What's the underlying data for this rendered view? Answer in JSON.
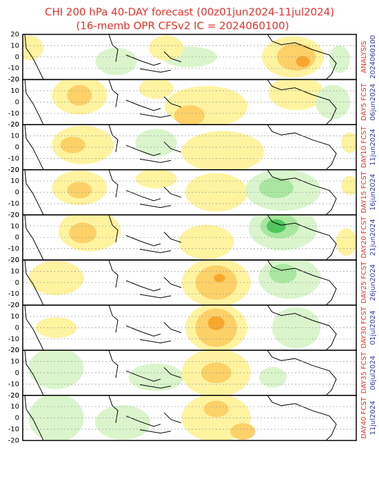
{
  "title": "CHI 200 hPa 40-DAY forecast (00z01jun2024-11jul2024)",
  "subtitle": "(16-memb OPR CFSv2 IC = 2024060100)",
  "yticks": [
    20,
    10,
    0,
    -10,
    -20
  ],
  "ylim": [
    -20,
    20
  ],
  "panels": [
    {
      "label": "ANALYSIS",
      "date": "2024060100"
    },
    {
      "label": "DAY5 FCST",
      "date": "06jun2024"
    },
    {
      "label": "DAY10 FCST",
      "date": "11jun2024"
    },
    {
      "label": "DAY15 FCST",
      "date": "16jun2024"
    },
    {
      "label": "DAY20 FCST",
      "date": "21jun2024"
    },
    {
      "label": "DAY25 FCST",
      "date": "26jun2024"
    },
    {
      "label": "DAY30 FCST",
      "date": "01jul2024"
    },
    {
      "label": "DAY35 FCST",
      "date": "06jul2024"
    },
    {
      "label": "DAY40 FCST",
      "date": "11jul2024"
    }
  ]
}
